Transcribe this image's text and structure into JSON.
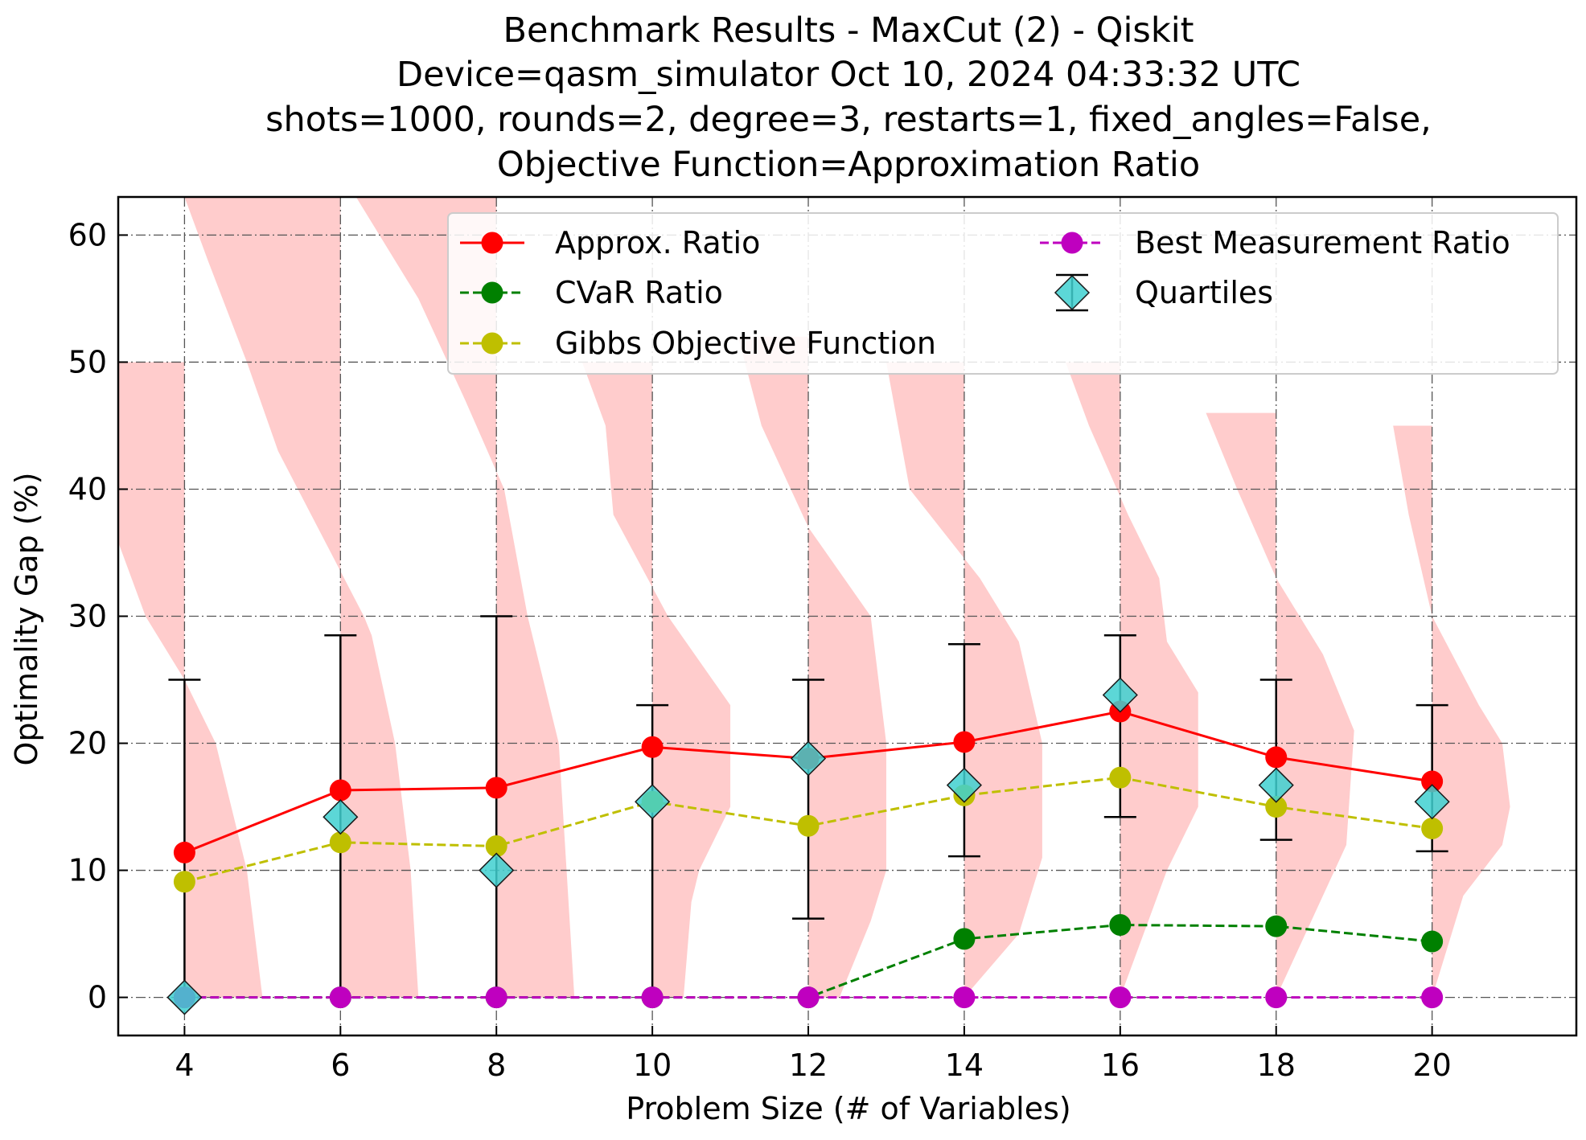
{
  "chart_data": {
    "type": "line",
    "title": [
      "Benchmark Results - MaxCut (2) - Qiskit",
      "Device=qasm_simulator  Oct 10, 2024 04:33:32 UTC",
      "shots=1000, rounds=2, degree=3, restarts=1, fixed_angles=False,",
      "Objective Function=Approximation Ratio"
    ],
    "xlabel": "Problem Size (# of Variables)",
    "ylabel": "Optimality Gap (%)",
    "xlim": [
      3.15,
      21.85
    ],
    "ylim": [
      -3,
      63
    ],
    "xticks": [
      4,
      6,
      8,
      10,
      12,
      14,
      16,
      18,
      20
    ],
    "yticks": [
      0,
      10,
      20,
      30,
      40,
      50,
      60
    ],
    "grid": true,
    "legend_position": "top-right",
    "x": [
      4,
      6,
      8,
      10,
      12,
      14,
      16,
      18,
      20
    ],
    "series": [
      {
        "name": "Approx. Ratio",
        "color": "#ff0000",
        "style": "solid",
        "values": [
          11.4,
          16.3,
          16.5,
          19.7,
          18.8,
          20.1,
          22.5,
          18.9,
          17.0
        ]
      },
      {
        "name": "CVaR Ratio",
        "color": "#008000",
        "style": "dashed",
        "values": [
          0,
          0,
          0,
          0,
          0,
          4.6,
          5.7,
          5.6,
          4.4
        ]
      },
      {
        "name": "Gibbs Objective Function",
        "color": "#bfbf00",
        "style": "dashed",
        "values": [
          9.1,
          12.2,
          11.9,
          15.4,
          13.5,
          15.9,
          17.3,
          15.0,
          13.3
        ]
      },
      {
        "name": "Best Measurement Ratio",
        "color": "#bf00bf",
        "style": "dashed",
        "values": [
          0,
          0,
          0,
          0,
          0,
          0,
          0,
          0,
          0
        ]
      }
    ],
    "quartiles": {
      "name": "Quartiles",
      "color": "#40d0d0",
      "median": [
        0,
        14.2,
        10.0,
        15.4,
        18.8,
        16.7,
        23.8,
        16.7,
        15.4
      ],
      "lower": [
        0,
        0,
        0,
        0,
        6.2,
        11.1,
        14.2,
        12.4,
        11.5
      ],
      "upper": [
        25.0,
        28.5,
        30.0,
        23.0,
        25.0,
        27.8,
        28.5,
        25.0,
        23.0
      ]
    },
    "distributions": {
      "color": "#ffcccc",
      "profiles": [
        [
          [
            0,
            5.0
          ],
          [
            10,
            4.8
          ],
          [
            20,
            4.4
          ],
          [
            25,
            4.0
          ],
          [
            30,
            3.5
          ],
          [
            40,
            2.9
          ],
          [
            50,
            0
          ]
        ],
        [
          [
            0,
            7.0
          ],
          [
            10,
            6.9
          ],
          [
            20,
            6.7
          ],
          [
            28.5,
            6.4
          ],
          [
            30,
            6.3
          ],
          [
            43,
            5.2
          ],
          [
            50,
            4.8
          ],
          [
            58,
            4.3
          ],
          [
            63,
            4.0
          ]
        ],
        [
          [
            0,
            9.0
          ],
          [
            10,
            8.9
          ],
          [
            20,
            8.8
          ],
          [
            30,
            8.4
          ],
          [
            40,
            8.1
          ],
          [
            47,
            7.6
          ],
          [
            55,
            7.0
          ],
          [
            63,
            6.2
          ]
        ],
        [
          [
            0,
            10.4
          ],
          [
            7.5,
            10.5
          ],
          [
            10,
            10.6
          ],
          [
            15,
            11.0
          ],
          [
            23,
            11.0
          ],
          [
            30,
            10.2
          ],
          [
            38,
            9.5
          ],
          [
            45,
            9.4
          ],
          [
            50,
            9.1
          ]
        ],
        [
          [
            0,
            12.4
          ],
          [
            6,
            12.8
          ],
          [
            10,
            13.0
          ],
          [
            20,
            13.0
          ],
          [
            30,
            12.8
          ],
          [
            37,
            12.0
          ],
          [
            45,
            11.4
          ],
          [
            52,
            11.1
          ]
        ],
        [
          [
            0,
            14.0
          ],
          [
            5,
            14.7
          ],
          [
            11,
            15.0
          ],
          [
            20,
            15.0
          ],
          [
            28,
            14.7
          ],
          [
            33,
            14.2
          ],
          [
            40,
            13.3
          ],
          [
            50,
            13.0
          ]
        ],
        [
          [
            0,
            16.0
          ],
          [
            10,
            16.6
          ],
          [
            15,
            17.0
          ],
          [
            24,
            17.0
          ],
          [
            28,
            16.6
          ],
          [
            33,
            16.5
          ],
          [
            38,
            16.1
          ],
          [
            45,
            15.6
          ],
          [
            50,
            15.3
          ]
        ],
        [
          [
            0,
            18.0
          ],
          [
            8,
            18.6
          ],
          [
            12,
            18.9
          ],
          [
            21,
            19.0
          ],
          [
            27,
            18.6
          ],
          [
            33,
            18.0
          ],
          [
            40,
            17.5
          ],
          [
            46,
            17.1
          ]
        ],
        [
          [
            0,
            20.0
          ],
          [
            8,
            20.4
          ],
          [
            12,
            20.9
          ],
          [
            15,
            21.0
          ],
          [
            20,
            20.9
          ],
          [
            23,
            20.6
          ],
          [
            30,
            20.0
          ],
          [
            38,
            19.7
          ],
          [
            45,
            19.5
          ]
        ]
      ]
    }
  }
}
